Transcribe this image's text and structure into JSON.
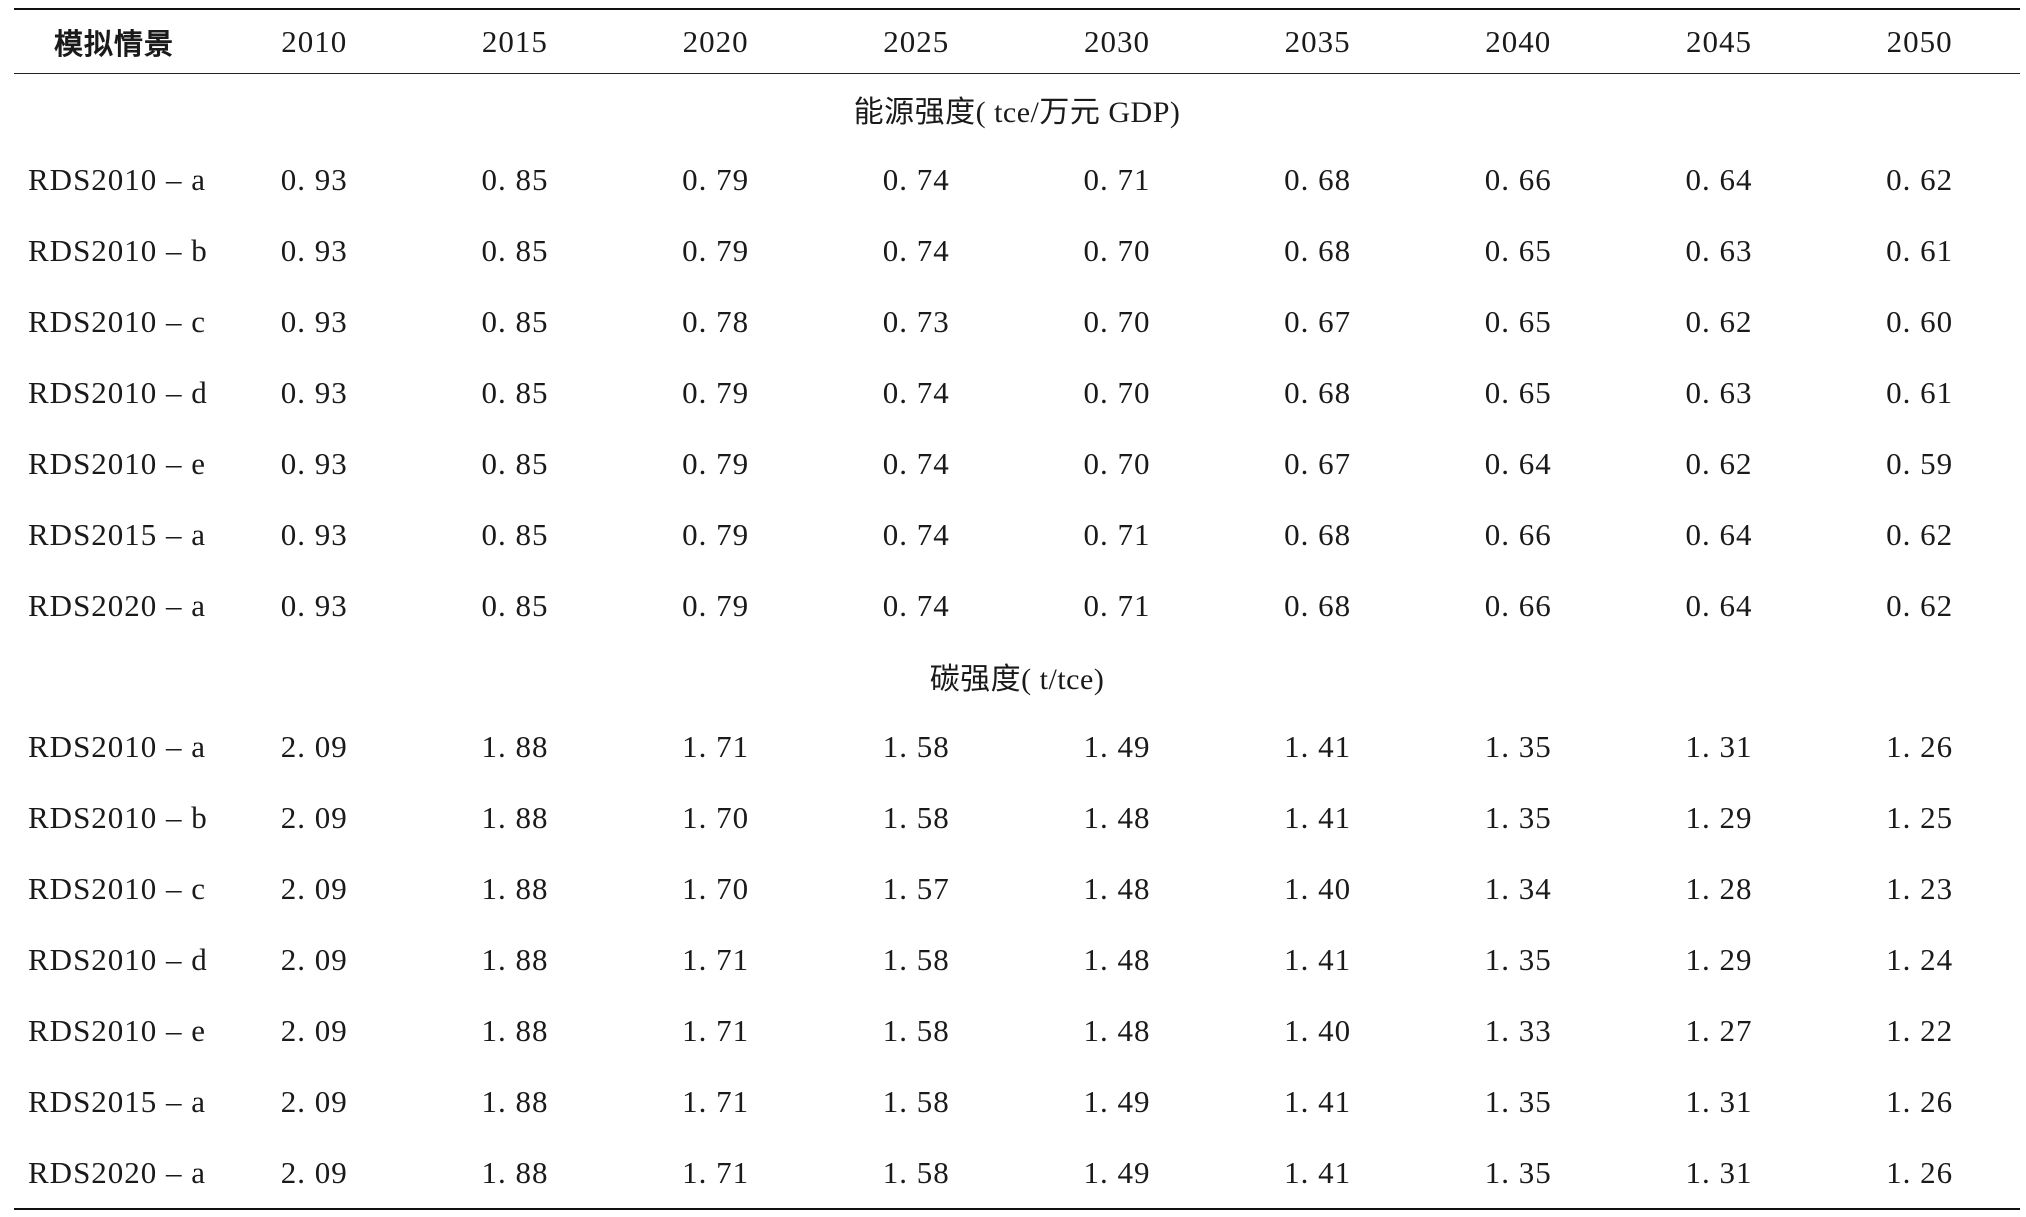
{
  "table": {
    "header": {
      "scenario_label": "模拟情景",
      "years": [
        "2010",
        "2015",
        "2020",
        "2025",
        "2030",
        "2035",
        "2040",
        "2045",
        "2050"
      ]
    },
    "sections": [
      {
        "title": "能源强度( tce/万元 GDP)",
        "rows": [
          {
            "scenario": "RDS2010 – a",
            "values": [
              "0. 93",
              "0. 85",
              "0. 79",
              "0. 74",
              "0. 71",
              "0. 68",
              "0. 66",
              "0. 64",
              "0. 62"
            ]
          },
          {
            "scenario": "RDS2010 – b",
            "values": [
              "0. 93",
              "0. 85",
              "0. 79",
              "0. 74",
              "0. 70",
              "0. 68",
              "0. 65",
              "0. 63",
              "0. 61"
            ]
          },
          {
            "scenario": "RDS2010 – c",
            "values": [
              "0. 93",
              "0. 85",
              "0. 78",
              "0. 73",
              "0. 70",
              "0. 67",
              "0. 65",
              "0. 62",
              "0. 60"
            ]
          },
          {
            "scenario": "RDS2010 – d",
            "values": [
              "0. 93",
              "0. 85",
              "0. 79",
              "0. 74",
              "0. 70",
              "0. 68",
              "0. 65",
              "0. 63",
              "0. 61"
            ]
          },
          {
            "scenario": "RDS2010 – e",
            "values": [
              "0. 93",
              "0. 85",
              "0. 79",
              "0. 74",
              "0. 70",
              "0. 67",
              "0. 64",
              "0. 62",
              "0. 59"
            ]
          },
          {
            "scenario": "RDS2015 – a",
            "values": [
              "0. 93",
              "0. 85",
              "0. 79",
              "0. 74",
              "0. 71",
              "0. 68",
              "0. 66",
              "0. 64",
              "0. 62"
            ]
          },
          {
            "scenario": "RDS2020 – a",
            "values": [
              "0. 93",
              "0. 85",
              "0. 79",
              "0. 74",
              "0. 71",
              "0. 68",
              "0. 66",
              "0. 64",
              "0. 62"
            ]
          }
        ]
      },
      {
        "title": "碳强度( t/tce)",
        "rows": [
          {
            "scenario": "RDS2010 – a",
            "values": [
              "2. 09",
              "1. 88",
              "1. 71",
              "1. 58",
              "1. 49",
              "1. 41",
              "1. 35",
              "1. 31",
              "1. 26"
            ]
          },
          {
            "scenario": "RDS2010 – b",
            "values": [
              "2. 09",
              "1. 88",
              "1. 70",
              "1. 58",
              "1. 48",
              "1. 41",
              "1. 35",
              "1. 29",
              "1. 25"
            ]
          },
          {
            "scenario": "RDS2010 – c",
            "values": [
              "2. 09",
              "1. 88",
              "1. 70",
              "1. 57",
              "1. 48",
              "1. 40",
              "1. 34",
              "1. 28",
              "1. 23"
            ]
          },
          {
            "scenario": "RDS2010 – d",
            "values": [
              "2. 09",
              "1. 88",
              "1. 71",
              "1. 58",
              "1. 48",
              "1. 41",
              "1. 35",
              "1. 29",
              "1. 24"
            ]
          },
          {
            "scenario": "RDS2010 – e",
            "values": [
              "2. 09",
              "1. 88",
              "1. 71",
              "1. 58",
              "1. 48",
              "1. 40",
              "1. 33",
              "1. 27",
              "1. 22"
            ]
          },
          {
            "scenario": "RDS2015 – a",
            "values": [
              "2. 09",
              "1. 88",
              "1. 71",
              "1. 58",
              "1. 49",
              "1. 41",
              "1. 35",
              "1. 31",
              "1. 26"
            ]
          },
          {
            "scenario": "RDS2020 – a",
            "values": [
              "2. 09",
              "1. 88",
              "1. 71",
              "1. 58",
              "1. 49",
              "1. 41",
              "1. 35",
              "1. 31",
              "1. 26"
            ]
          }
        ]
      }
    ]
  }
}
